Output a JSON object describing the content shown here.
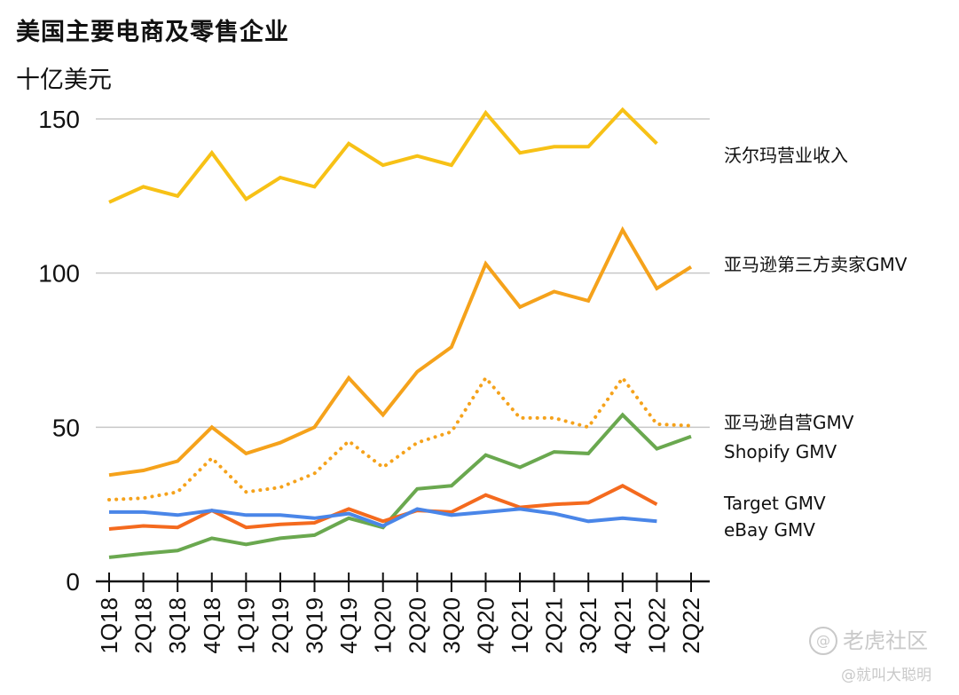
{
  "chart_data": {
    "type": "line",
    "title": "美国主要电商及零售企业",
    "ylabel": "十亿美元",
    "xlabel": "",
    "ylim": [
      0,
      150
    ],
    "yticks": [
      0,
      50,
      100,
      150
    ],
    "grid": true,
    "legend": "right (direct labels)",
    "categories": [
      "1Q18",
      "2Q18",
      "3Q18",
      "4Q18",
      "1Q19",
      "2Q19",
      "3Q19",
      "4Q19",
      "1Q20",
      "2Q20",
      "3Q20",
      "4Q20",
      "1Q21",
      "2Q21",
      "3Q21",
      "4Q21",
      "1Q22",
      "2Q22"
    ],
    "series": [
      {
        "name": "沃尔玛营业收入",
        "color": "#F7C116",
        "dash": false,
        "values": [
          123,
          128,
          125,
          139,
          124,
          131,
          128,
          142,
          135,
          138,
          135,
          152,
          139,
          141,
          141,
          153,
          142,
          null
        ]
      },
      {
        "name": "亚马逊第三方卖家GMV",
        "color": "#F5A21B",
        "dash": false,
        "values": [
          34.5,
          36,
          39,
          50,
          41.5,
          45,
          50,
          66,
          54,
          68,
          76,
          103,
          89,
          94,
          91,
          114,
          95,
          102
        ]
      },
      {
        "name": "亚马逊自营GMV",
        "color": "#F5A21B",
        "dash": true,
        "values": [
          26.5,
          27,
          29,
          40,
          29,
          30.5,
          35,
          45.5,
          37,
          45,
          48.5,
          66,
          53,
          53,
          50,
          66,
          51,
          50.5
        ]
      },
      {
        "name": "Shopify GMV",
        "color": "#6AA84F",
        "dash": false,
        "values": [
          7.8,
          9,
          10,
          14,
          12,
          14,
          15,
          20.5,
          17.5,
          30,
          31,
          41,
          37,
          42,
          41.5,
          54,
          43,
          47
        ]
      },
      {
        "name": "Target GMV",
        "color": "#F46A1E",
        "dash": false,
        "values": [
          17,
          18,
          17.5,
          23,
          17.5,
          18.5,
          19,
          23.5,
          19.5,
          23,
          22.5,
          28,
          24,
          25,
          25.5,
          31,
          25,
          null
        ]
      },
      {
        "name": "eBay GMV",
        "color": "#4A86E8",
        "dash": false,
        "values": [
          22.5,
          22.5,
          21.5,
          23,
          21.5,
          21.5,
          20.5,
          22,
          18,
          23.5,
          21.5,
          22.5,
          23.5,
          22,
          19.5,
          20.5,
          19.5,
          null
        ]
      }
    ]
  },
  "watermark": {
    "logo_glyph": "@",
    "name": "老虎社区",
    "user": "@就叫大聪明"
  }
}
